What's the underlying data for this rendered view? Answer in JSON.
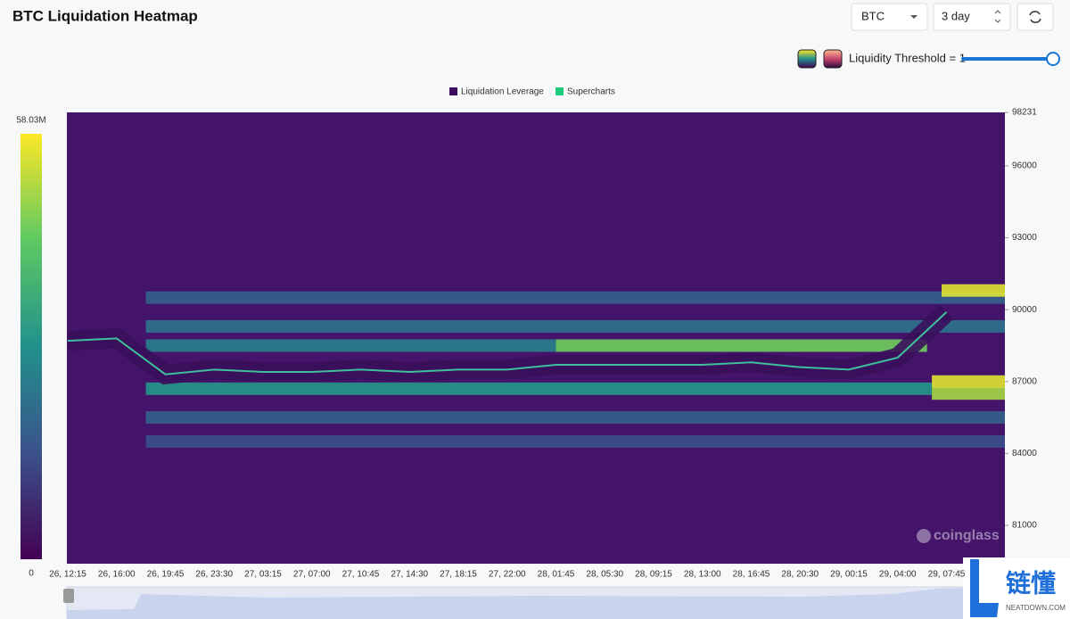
{
  "header": {
    "title": "BTC Liquidation Heatmap",
    "symbol": "BTC",
    "range": "3 day",
    "threshold_label": "Liquidity Threshold = 1"
  },
  "watermark": "coinglass",
  "logo": {
    "name": "链懂",
    "site": "NEATDOWN.COM"
  },
  "chart_data": {
    "type": "heatmap",
    "legend": [
      "Liquidation Leverage",
      "Supercharts"
    ],
    "legend_colors": [
      "#3b0f5e",
      "#1ecb7b"
    ],
    "colorscale": [
      "#440154",
      "#3b528b",
      "#21918c",
      "#5ec962",
      "#fde725"
    ],
    "clim": [
      0,
      58030000
    ],
    "cticks": [
      {
        "value": 58030000,
        "label": "58.03M"
      },
      0
    ],
    "categories": [
      "26, 12:15",
      "26, 16:00",
      "26, 19:45",
      "26, 23:30",
      "27, 03:15",
      "27, 07:00",
      "27, 10:45",
      "27, 14:30",
      "27, 18:15",
      "27, 22:00",
      "28, 01:45",
      "28, 05:30",
      "28, 09:15",
      "28, 13:00",
      "28, 16:45",
      "28, 20:30",
      "29, 00:15",
      "29, 04:00",
      "29, 07:45"
    ],
    "ylim": [
      79400,
      98231
    ],
    "yticks": [
      81000,
      84000,
      87000,
      90000,
      93000,
      96000,
      98231
    ],
    "series": [
      {
        "name": "BTC",
        "color": "#3fbf9a",
        "values": [
          88700,
          88800,
          87300,
          87500,
          87400,
          87400,
          87500,
          87400,
          87500,
          87500,
          87700,
          87700,
          87700,
          87700,
          87800,
          87600,
          87500,
          88000,
          89900
        ]
      }
    ],
    "bands": [
      {
        "price": 84500,
        "from": 1.6,
        "to": 19.2,
        "value": 14000000
      },
      {
        "price": 85500,
        "from": 1.6,
        "to": 19.2,
        "value": 18000000
      },
      {
        "price": 90500,
        "from": 1.6,
        "to": 19.2,
        "value": 18000000
      },
      {
        "price": 89300,
        "from": 1.6,
        "to": 19.2,
        "value": 22000000
      },
      {
        "price": 88500,
        "from": 1.6,
        "to": 10,
        "value": 25000000
      },
      {
        "price": 86700,
        "from": 1.6,
        "to": 17.7,
        "value": 30000000
      },
      {
        "price": 88500,
        "from": 10,
        "to": 17.6,
        "value": 45000000
      },
      {
        "price": 86500,
        "from": 17.7,
        "to": 19.2,
        "value": 50000000
      },
      {
        "price": 87000,
        "from": 17.7,
        "to": 19.2,
        "value": 55000000
      },
      {
        "price": 90800,
        "from": 17.9,
        "to": 19.2,
        "value": 55000000
      }
    ]
  }
}
